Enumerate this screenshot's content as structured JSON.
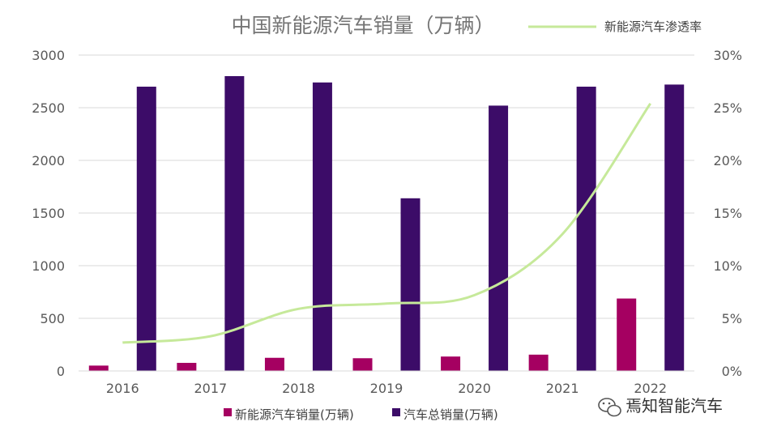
{
  "chart_data": {
    "type": "bar",
    "title": "中国新能源汽车销量（万辆）",
    "categories": [
      "2016",
      "2017",
      "2018",
      "2019",
      "2020",
      "2021",
      "2022"
    ],
    "series": [
      {
        "name": "新能源汽车销量(万辆)",
        "type": "bar",
        "axis": "left",
        "color": "#A50061",
        "values": [
          51,
          77,
          125,
          121,
          137,
          155,
          688
        ]
      },
      {
        "name": "汽车总销量(万辆)",
        "type": "bar",
        "axis": "left",
        "color": "#3C0C68",
        "values": [
          2700,
          2800,
          2740,
          1640,
          2520,
          2700,
          2720
        ]
      },
      {
        "name": "新能源汽车渗透率",
        "type": "line",
        "axis": "right",
        "color": "#C6E99A",
        "values": [
          0.027,
          0.033,
          0.059,
          0.064,
          0.072,
          0.13,
          0.254
        ]
      }
    ],
    "y_left": {
      "min": 0,
      "max": 3000,
      "ticks": [
        "0",
        "500",
        "1000",
        "1500",
        "2000",
        "2500",
        "3000"
      ]
    },
    "y_right": {
      "min": 0,
      "max": 0.3,
      "ticks": [
        "0%",
        "5%",
        "10%",
        "15%",
        "20%",
        "25%",
        "30%"
      ]
    },
    "grid": true,
    "legend_bars": "bottom",
    "legend_line": "top-right"
  },
  "watermark": {
    "text": "焉知智能汽车"
  }
}
